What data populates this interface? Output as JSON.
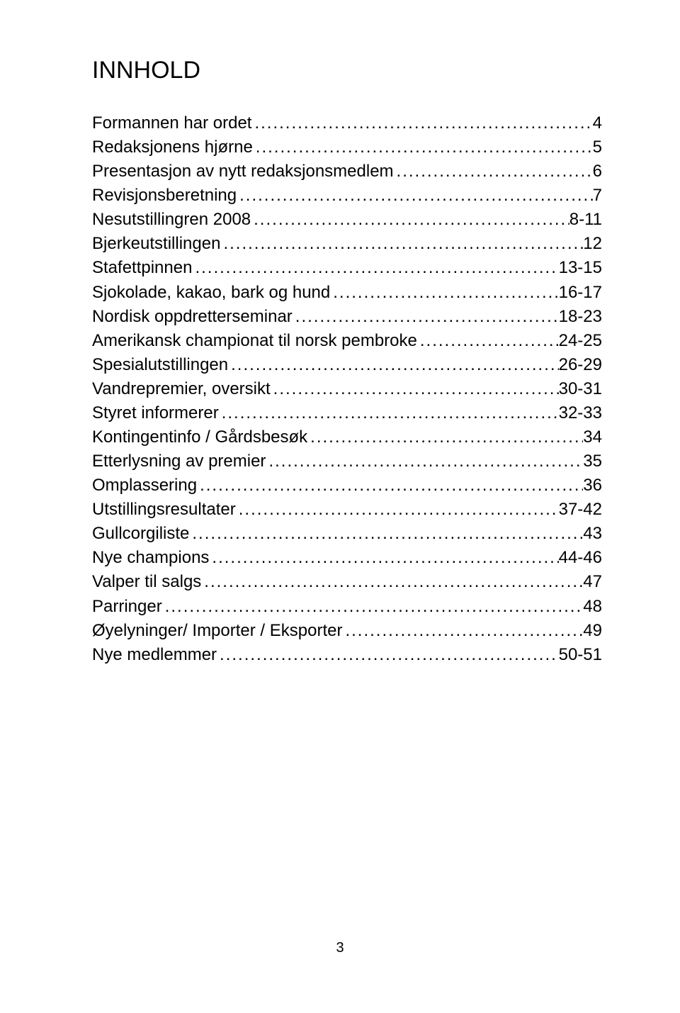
{
  "title": "INNHOLD",
  "entries": [
    {
      "label": "Formannen har ordet",
      "page": "4"
    },
    {
      "label": "Redaksjonens hjørne",
      "page": "5"
    },
    {
      "label": "Presentasjon av nytt redaksjonsmedlem",
      "page": "6"
    },
    {
      "label": "Revisjonsberetning",
      "page": "7"
    },
    {
      "label": "Nesutstillingren 2008",
      "page": "8-11"
    },
    {
      "label": "Bjerkeutstillingen",
      "page": "12"
    },
    {
      "label": "Stafettpinnen",
      "page": "13-15"
    },
    {
      "label": "Sjokolade, kakao, bark og hund",
      "page": "16-17"
    },
    {
      "label": "Nordisk oppdretterseminar",
      "page": "18-23"
    },
    {
      "label": "Amerikansk championat til norsk pembroke",
      "page": "24-25"
    },
    {
      "label": "Spesialutstillingen",
      "page": "26-29"
    },
    {
      "label": "Vandrepremier, oversikt",
      "page": "30-31"
    },
    {
      "label": "Styret informerer",
      "page": "32-33"
    },
    {
      "label": "Kontingentinfo / Gårdsbesøk",
      "page": "34"
    },
    {
      "label": "Etterlysning av premier",
      "page": "35"
    },
    {
      "label": "Omplassering",
      "page": "36"
    },
    {
      "label": "Utstillingsresultater",
      "page": "37-42"
    },
    {
      "label": "Gullcorgiliste",
      "page": "43"
    },
    {
      "label": "Nye champions",
      "page": "44-46"
    },
    {
      "label": "Valper til salgs",
      "page": "47"
    },
    {
      "label": "Parringer",
      "page": "48"
    },
    {
      "label": "Øyelyninger/ Importer / Eksporter",
      "page": "49"
    },
    {
      "label": "Nye medlemmer",
      "page": "50-51"
    }
  ],
  "page_number": "3",
  "style": {
    "background_color": "#ffffff",
    "text_color": "#000000",
    "title_fontsize": 34,
    "body_fontsize": 24,
    "page_number_fontsize": 20,
    "font_family": "Arial"
  }
}
